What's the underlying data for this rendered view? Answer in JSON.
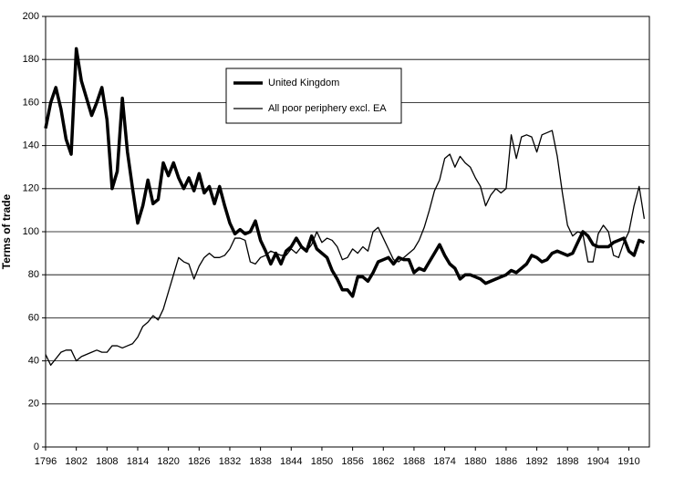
{
  "chart_data": {
    "type": "line",
    "y_label": "Terms of trade",
    "x": [
      1796,
      1797,
      1798,
      1799,
      1800,
      1801,
      1802,
      1803,
      1804,
      1805,
      1806,
      1807,
      1808,
      1809,
      1810,
      1811,
      1812,
      1813,
      1814,
      1815,
      1816,
      1817,
      1818,
      1819,
      1820,
      1821,
      1822,
      1823,
      1824,
      1825,
      1826,
      1827,
      1828,
      1829,
      1830,
      1831,
      1832,
      1833,
      1834,
      1835,
      1836,
      1837,
      1838,
      1839,
      1840,
      1841,
      1842,
      1843,
      1844,
      1845,
      1846,
      1847,
      1848,
      1849,
      1850,
      1851,
      1852,
      1853,
      1854,
      1855,
      1856,
      1857,
      1858,
      1859,
      1860,
      1861,
      1862,
      1863,
      1864,
      1865,
      1866,
      1867,
      1868,
      1869,
      1870,
      1871,
      1872,
      1873,
      1874,
      1875,
      1876,
      1877,
      1878,
      1879,
      1880,
      1881,
      1882,
      1883,
      1884,
      1885,
      1886,
      1887,
      1888,
      1889,
      1890,
      1891,
      1892,
      1893,
      1894,
      1895,
      1896,
      1897,
      1898,
      1899,
      1900,
      1901,
      1902,
      1903,
      1904,
      1905,
      1906,
      1907,
      1908,
      1909,
      1910,
      1911,
      1912,
      1913
    ],
    "series": [
      {
        "name": "United Kingdom",
        "color": "#000000",
        "width": 3.5,
        "values": [
          148,
          160,
          167,
          157,
          143,
          136,
          185,
          170,
          162,
          154,
          160,
          167,
          152,
          120,
          128,
          162,
          137,
          120,
          104,
          112,
          124,
          113,
          115,
          132,
          126,
          132,
          125,
          120,
          125,
          119,
          127,
          118,
          121,
          113,
          121,
          112,
          104,
          99,
          101,
          99,
          100,
          105,
          96,
          91,
          85,
          90,
          85,
          91,
          93,
          97,
          93,
          91,
          98,
          92,
          90,
          88,
          82,
          78,
          73,
          73,
          70,
          79,
          79,
          77,
          81,
          86,
          87,
          88,
          85,
          88,
          87,
          87,
          81,
          83,
          82,
          86,
          90,
          94,
          89,
          85,
          83,
          78,
          80,
          80,
          79,
          78,
          76,
          77,
          78,
          79,
          80,
          82,
          81,
          83,
          85,
          89,
          88,
          86,
          87,
          90,
          91,
          90,
          89,
          90,
          95,
          100,
          98,
          94,
          93,
          93,
          93,
          95,
          96,
          97,
          91,
          89,
          96,
          95
        ]
      },
      {
        "name": "All poor periphery excl. EA",
        "color": "#000000",
        "width": 1.3,
        "values": [
          43,
          38,
          41,
          44,
          45,
          45,
          40,
          42,
          43,
          44,
          45,
          44,
          44,
          47,
          47,
          46,
          47,
          48,
          51,
          56,
          58,
          61,
          59,
          64,
          72,
          80,
          88,
          86,
          85,
          78,
          84,
          88,
          90,
          88,
          88,
          89,
          92,
          97,
          97,
          96,
          86,
          85,
          88,
          89,
          91,
          90,
          89,
          89,
          92,
          90,
          93,
          91,
          94,
          100,
          95,
          97,
          96,
          93,
          87,
          88,
          92,
          90,
          93,
          91,
          100,
          102,
          97,
          92,
          87,
          86,
          88,
          90,
          92,
          96,
          102,
          110,
          119,
          124,
          134,
          136,
          130,
          135,
          132,
          130,
          125,
          121,
          112,
          117,
          120,
          118,
          120,
          145,
          134,
          144,
          145,
          144,
          137,
          145,
          146,
          147,
          135,
          118,
          103,
          98,
          100,
          99,
          86,
          86,
          99,
          103,
          100,
          89,
          88,
          95,
          100,
          112,
          121,
          106
        ]
      }
    ],
    "xlim": [
      1796,
      1914
    ],
    "xticks": [
      1796,
      1802,
      1808,
      1814,
      1820,
      1826,
      1832,
      1838,
      1844,
      1850,
      1856,
      1862,
      1868,
      1874,
      1880,
      1886,
      1892,
      1898,
      1904,
      1910
    ],
    "ylim": [
      0,
      200
    ],
    "yticks": [
      0,
      20,
      40,
      60,
      80,
      100,
      120,
      140,
      160,
      180,
      200
    ],
    "grid": true,
    "legend": "top"
  }
}
